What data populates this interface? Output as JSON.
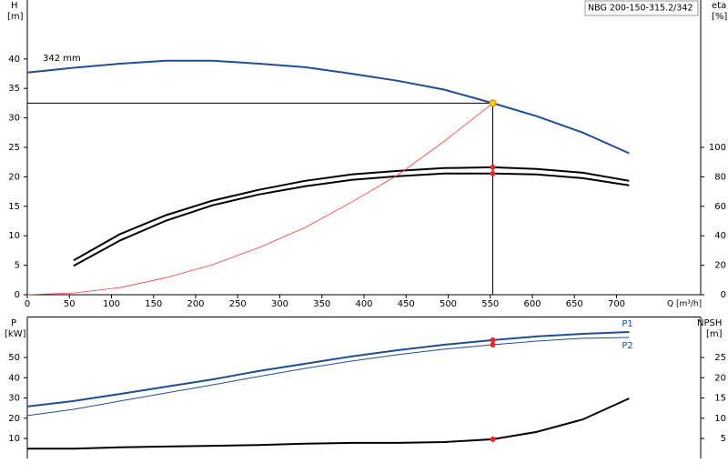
{
  "chart_data": [
    {
      "type": "line",
      "title": "NBG 200-150-315.2/342",
      "ylabel": "H",
      "yunit": "[m]",
      "y2label": "eta",
      "y2unit": "[%]",
      "xlabel": "Q [m³/h]",
      "annotation": "342 mm",
      "x": [
        0,
        55,
        110,
        165,
        220,
        275,
        330,
        385,
        440,
        495,
        553,
        605,
        660,
        715
      ],
      "xlim": [
        0,
        800
      ],
      "xticks": [
        0,
        50,
        100,
        150,
        200,
        250,
        300,
        350,
        400,
        450,
        500,
        550,
        600,
        650,
        700
      ],
      "ylim": [
        0,
        50
      ],
      "yticks": [
        0,
        5,
        10,
        15,
        20,
        25,
        30,
        35,
        40
      ],
      "y2lim": [
        0,
        200
      ],
      "y2ticks": [
        0,
        20,
        40,
        60,
        80,
        100
      ],
      "operating_point": {
        "x": 553,
        "y": 32.5
      },
      "series": [
        {
          "color": "#1f4e96",
          "values": [
            37.7,
            38.5,
            39.2,
            39.7,
            39.7,
            39.2,
            38.6,
            37.5,
            36.3,
            34.8,
            32.5,
            30.3,
            27.5,
            24
          ]
        },
        {
          "color": "#000000",
          "axis": "y2",
          "values": [
            null,
            23.3,
            41.1,
            54,
            63.8,
            71.2,
            77.3,
            81.6,
            84,
            85.9,
            86.5,
            85.3,
            82.8,
            77.3
          ]
        },
        {
          "color": "#000000",
          "axis": "y2",
          "values": [
            null,
            19.6,
            36.8,
            50.3,
            60.7,
            68,
            73.6,
            77.9,
            80.4,
            82.2,
            82.2,
            81.6,
            79.1,
            74.2
          ]
        },
        {
          "color": "#ff3c3c",
          "values": [
            0,
            0.3,
            1.2,
            2.9,
            5.1,
            8,
            11.4,
            15.7,
            20.3,
            26,
            32.5,
            null,
            null,
            null
          ]
        }
      ]
    },
    {
      "type": "line",
      "ylabel": "P",
      "yunit": "[kW]",
      "y2label": "NPSH",
      "y2unit": "[m]",
      "x": [
        0,
        55,
        110,
        165,
        220,
        275,
        330,
        385,
        440,
        495,
        553,
        605,
        660,
        715
      ],
      "xlim": [
        0,
        800
      ],
      "ylim": [
        0,
        70
      ],
      "yticks": [
        10,
        20,
        30,
        40,
        50
      ],
      "y2lim": [
        0,
        35
      ],
      "y2ticks": [
        5,
        10,
        15,
        20,
        25
      ],
      "operating_point": {
        "x": 553
      },
      "series": [
        {
          "name": "P1",
          "color": "#1f4e96",
          "values": [
            25.8,
            28.5,
            32,
            35.6,
            39.2,
            43.3,
            46.9,
            50.5,
            53.6,
            56.3,
            58.6,
            60.4,
            61.7,
            62.6
          ]
        },
        {
          "name": "P2",
          "color": "#1f4e96",
          "values": [
            21.3,
            24.4,
            28.5,
            32.5,
            36.5,
            40.6,
            44.6,
            48.2,
            51.4,
            54.1,
            56.3,
            58.1,
            59.5,
            59.9
          ]
        },
        {
          "color": "#000000",
          "axis": "y2",
          "values": [
            2.5,
            2.5,
            2.8,
            3,
            3.2,
            3.4,
            3.7,
            3.9,
            3.9,
            4.1,
            4.8,
            6.6,
            9.7,
            14.9
          ]
        }
      ]
    }
  ]
}
